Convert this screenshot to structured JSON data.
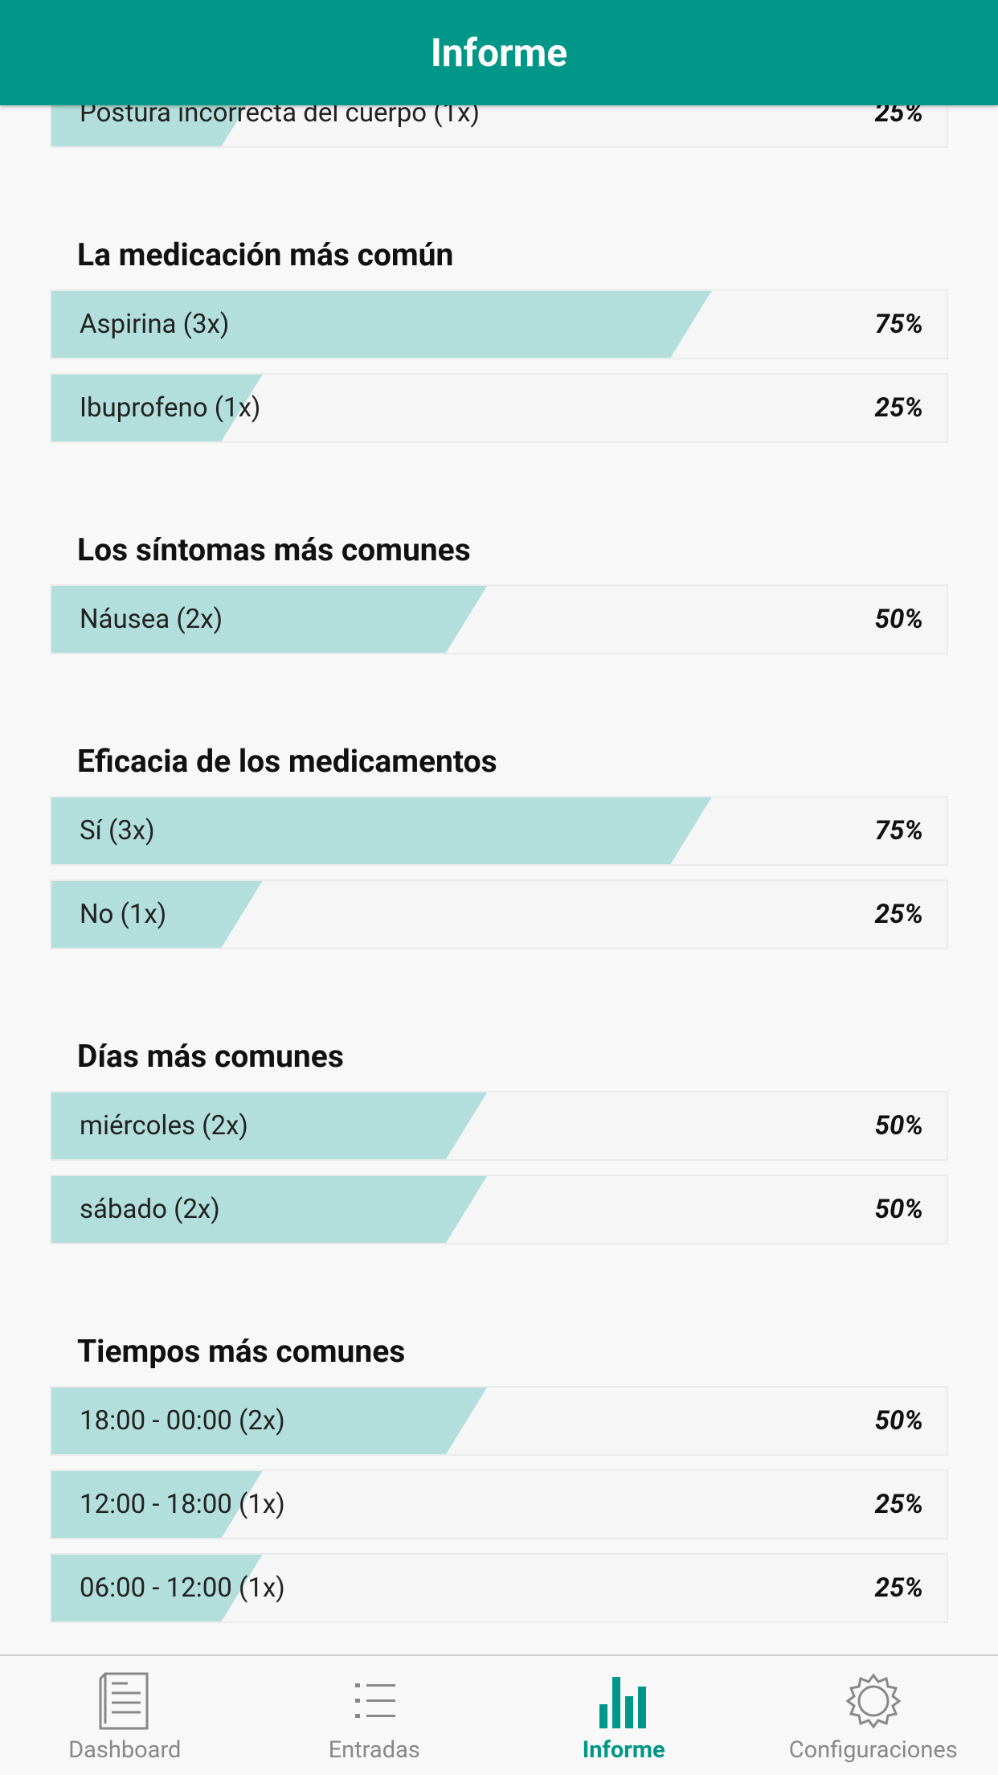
{
  "header": {
    "title": "Informe"
  },
  "sections": [
    {
      "items": [
        {
          "label": "Postura incorrecta del cuerpo (1x)",
          "percent": 25,
          "percent_label": "25%"
        }
      ]
    },
    {
      "title": "La medicación más común",
      "items": [
        {
          "label": "Aspirina (3x)",
          "percent": 75,
          "percent_label": "75%"
        },
        {
          "label": "Ibuprofeno (1x)",
          "percent": 25,
          "percent_label": "25%"
        }
      ]
    },
    {
      "title": "Los síntomas más comunes",
      "items": [
        {
          "label": "Náusea (2x)",
          "percent": 50,
          "percent_label": "50%"
        }
      ]
    },
    {
      "title": "Eficacia de los medicamentos",
      "items": [
        {
          "label": "Sí (3x)",
          "percent": 75,
          "percent_label": "75%"
        },
        {
          "label": "No (1x)",
          "percent": 25,
          "percent_label": "25%"
        }
      ]
    },
    {
      "title": "Días más comunes",
      "items": [
        {
          "label": "miércoles (2x)",
          "percent": 50,
          "percent_label": "50%"
        },
        {
          "label": "sábado (2x)",
          "percent": 50,
          "percent_label": "50%"
        }
      ]
    },
    {
      "title": "Tiempos más comunes",
      "items": [
        {
          "label": "18:00 - 00:00 (2x)",
          "percent": 50,
          "percent_label": "50%"
        },
        {
          "label": "12:00 - 18:00 (1x)",
          "percent": 25,
          "percent_label": "25%"
        },
        {
          "label": "06:00 - 12:00 (1x)",
          "percent": 25,
          "percent_label": "25%"
        }
      ]
    }
  ],
  "nav": [
    {
      "label": "Dashboard"
    },
    {
      "label": "Entradas"
    },
    {
      "label": "Informe"
    },
    {
      "label": "Configuraciones"
    }
  ]
}
